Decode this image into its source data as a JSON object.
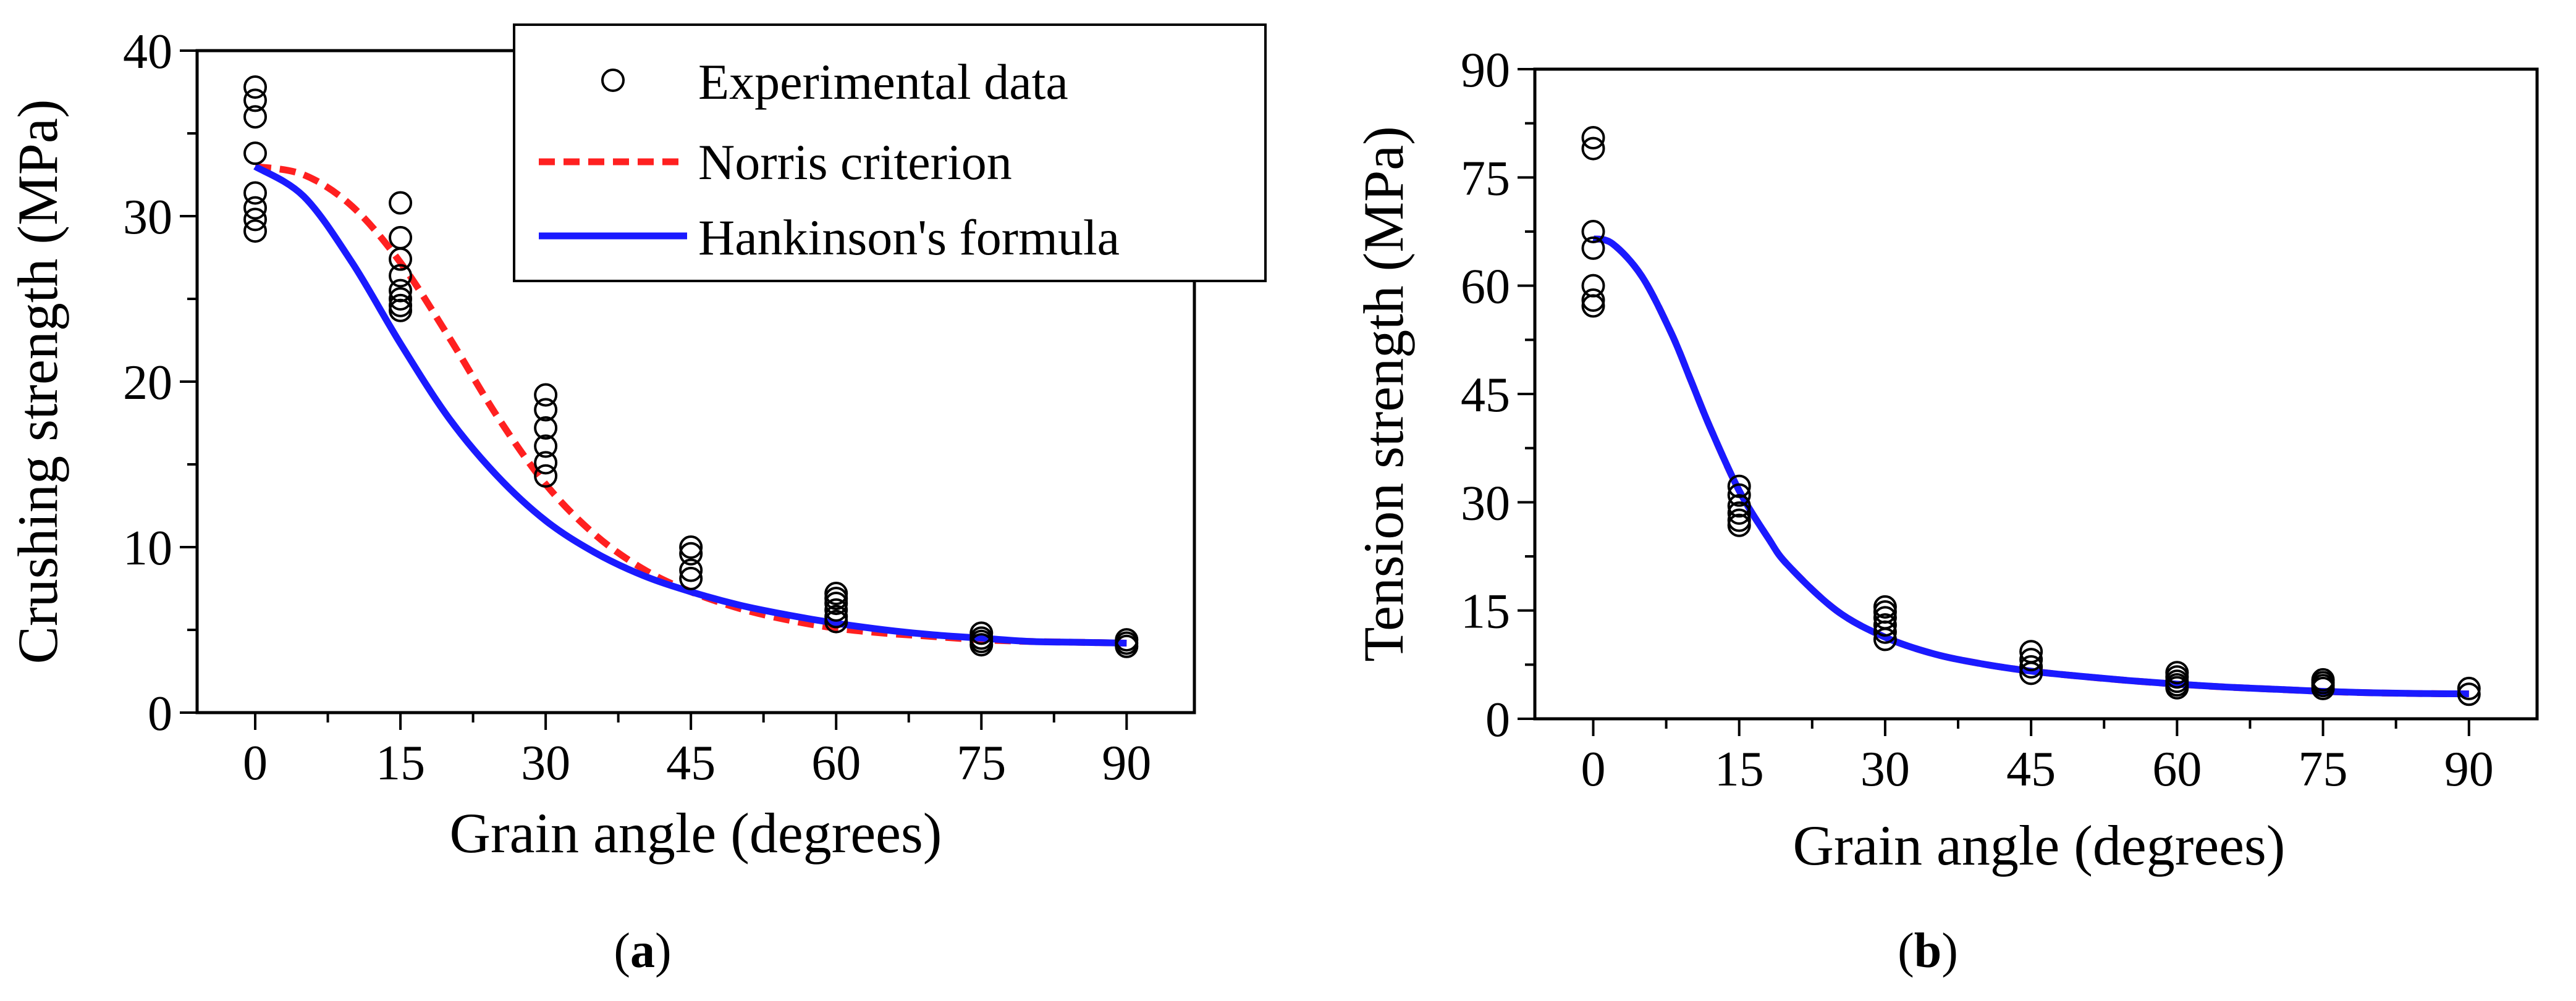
{
  "chart_data": [
    {
      "type": "scatter",
      "panel_label": "a",
      "title": "",
      "xlabel": "Grain angle (degrees)",
      "ylabel": "Crushing strength (MPa)",
      "xlim": [
        -6,
        97
      ],
      "ylim": [
        0,
        40
      ],
      "xticks": [
        0,
        15,
        30,
        45,
        60,
        75,
        90
      ],
      "yticks": [
        0,
        10,
        20,
        30,
        40
      ],
      "grid": false,
      "legend": {
        "position": "top-right",
        "entries": [
          {
            "label": "Experimental data",
            "style": "open-circle",
            "color": "#000000"
          },
          {
            "label": "Norris criterion",
            "style": "dashed",
            "color": "#ff2020"
          },
          {
            "label": "Hankinson's formula",
            "style": "solid",
            "color": "#1a1aff"
          }
        ]
      },
      "series": [
        {
          "name": "Experimental data",
          "kind": "points",
          "x": [
            0,
            0,
            0,
            0,
            0,
            0,
            0,
            0,
            15,
            15,
            15,
            15,
            15,
            15,
            15,
            15,
            30,
            30,
            30,
            30,
            30,
            30,
            45,
            45,
            45,
            45,
            60,
            60,
            60,
            60,
            60,
            60,
            75,
            75,
            75,
            75,
            90,
            90,
            90
          ],
          "y": [
            37.8,
            37.0,
            36.0,
            33.8,
            31.4,
            30.5,
            29.8,
            29.1,
            30.8,
            28.7,
            27.4,
            26.4,
            25.5,
            25.0,
            24.6,
            24.3,
            19.2,
            18.3,
            17.2,
            16.1,
            15.1,
            14.3,
            10.0,
            9.6,
            8.6,
            8.1,
            7.2,
            6.9,
            6.6,
            6.2,
            5.8,
            5.5,
            4.8,
            4.5,
            4.3,
            4.1,
            4.4,
            4.2,
            4.0
          ]
        },
        {
          "name": "Norris criterion",
          "kind": "line",
          "color": "#ff2020",
          "dash": true,
          "x": [
            0,
            5,
            10,
            15,
            20,
            25,
            30,
            35,
            40,
            45,
            50,
            55,
            60,
            65,
            70,
            75,
            80,
            85,
            90
          ],
          "y": [
            33.0,
            32.5,
            30.6,
            27.2,
            22.7,
            17.9,
            13.8,
            10.8,
            8.7,
            7.3,
            6.3,
            5.6,
            5.1,
            4.8,
            4.6,
            4.4,
            4.3,
            4.25,
            4.2
          ]
        },
        {
          "name": "Hankinson's formula",
          "kind": "line",
          "color": "#1a1aff",
          "dash": false,
          "x": [
            0,
            5,
            10,
            15,
            20,
            25,
            30,
            35,
            40,
            45,
            50,
            55,
            60,
            65,
            70,
            75,
            80,
            85,
            90
          ],
          "y": [
            33.0,
            31.2,
            27.2,
            22.3,
            17.8,
            14.3,
            11.6,
            9.7,
            8.3,
            7.3,
            6.5,
            5.9,
            5.4,
            5.0,
            4.7,
            4.5,
            4.3,
            4.25,
            4.2
          ]
        }
      ]
    },
    {
      "type": "scatter",
      "panel_label": "b",
      "title": "",
      "xlabel": "Grain angle (degrees)",
      "ylabel": "Tension strength (MPa)",
      "xlim": [
        -6,
        97
      ],
      "ylim": [
        0,
        90
      ],
      "xticks": [
        0,
        15,
        30,
        45,
        60,
        75,
        90
      ],
      "yticks": [
        0,
        15,
        30,
        45,
        60,
        75,
        90
      ],
      "grid": false,
      "legend": null,
      "series": [
        {
          "name": "Experimental data",
          "kind": "points",
          "x": [
            0,
            0,
            0,
            0,
            0,
            0,
            0,
            15,
            15,
            15,
            15,
            15,
            15,
            30,
            30,
            30,
            30,
            30,
            30,
            45,
            45,
            45,
            45,
            60,
            60,
            60,
            60,
            60,
            75,
            75,
            75,
            75,
            90,
            90
          ],
          "y": [
            80.5,
            79.0,
            67.5,
            65.2,
            60.0,
            58.0,
            57.2,
            32.2,
            31.0,
            29.5,
            28.5,
            27.5,
            26.8,
            15.5,
            14.8,
            14.0,
            13.0,
            12.0,
            11.0,
            9.3,
            8.2,
            7.2,
            6.3,
            6.4,
            5.8,
            5.2,
            4.7,
            4.3,
            5.4,
            5.0,
            4.6,
            4.2,
            4.2,
            3.4
          ]
        },
        {
          "name": "Norris criterion",
          "kind": "line",
          "color": "#ff2020",
          "dash": true,
          "x": [
            0,
            2,
            5,
            8,
            10,
            12,
            15,
            18,
            20,
            25,
            30,
            35,
            40,
            45,
            50,
            55,
            60,
            65,
            70,
            75,
            80,
            85,
            90
          ],
          "y": [
            66.5,
            65.8,
            61.3,
            53.5,
            47.0,
            40.4,
            31.6,
            25.0,
            21.3,
            15.0,
            11.3,
            9.0,
            7.6,
            6.6,
            5.9,
            5.3,
            4.8,
            4.4,
            4.1,
            3.8,
            3.6,
            3.5,
            3.45
          ]
        },
        {
          "name": "Hankinson's formula",
          "kind": "line",
          "color": "#1a1aff",
          "dash": false,
          "x": [
            0,
            2,
            5,
            8,
            10,
            12,
            15,
            18,
            20,
            25,
            30,
            35,
            40,
            45,
            50,
            55,
            60,
            65,
            70,
            75,
            80,
            85,
            90
          ],
          "y": [
            66.5,
            65.8,
            61.3,
            53.5,
            47.0,
            40.4,
            31.6,
            25.0,
            21.3,
            15.0,
            11.3,
            9.0,
            7.6,
            6.6,
            5.9,
            5.3,
            4.8,
            4.4,
            4.1,
            3.8,
            3.6,
            3.5,
            3.45
          ]
        }
      ]
    }
  ]
}
